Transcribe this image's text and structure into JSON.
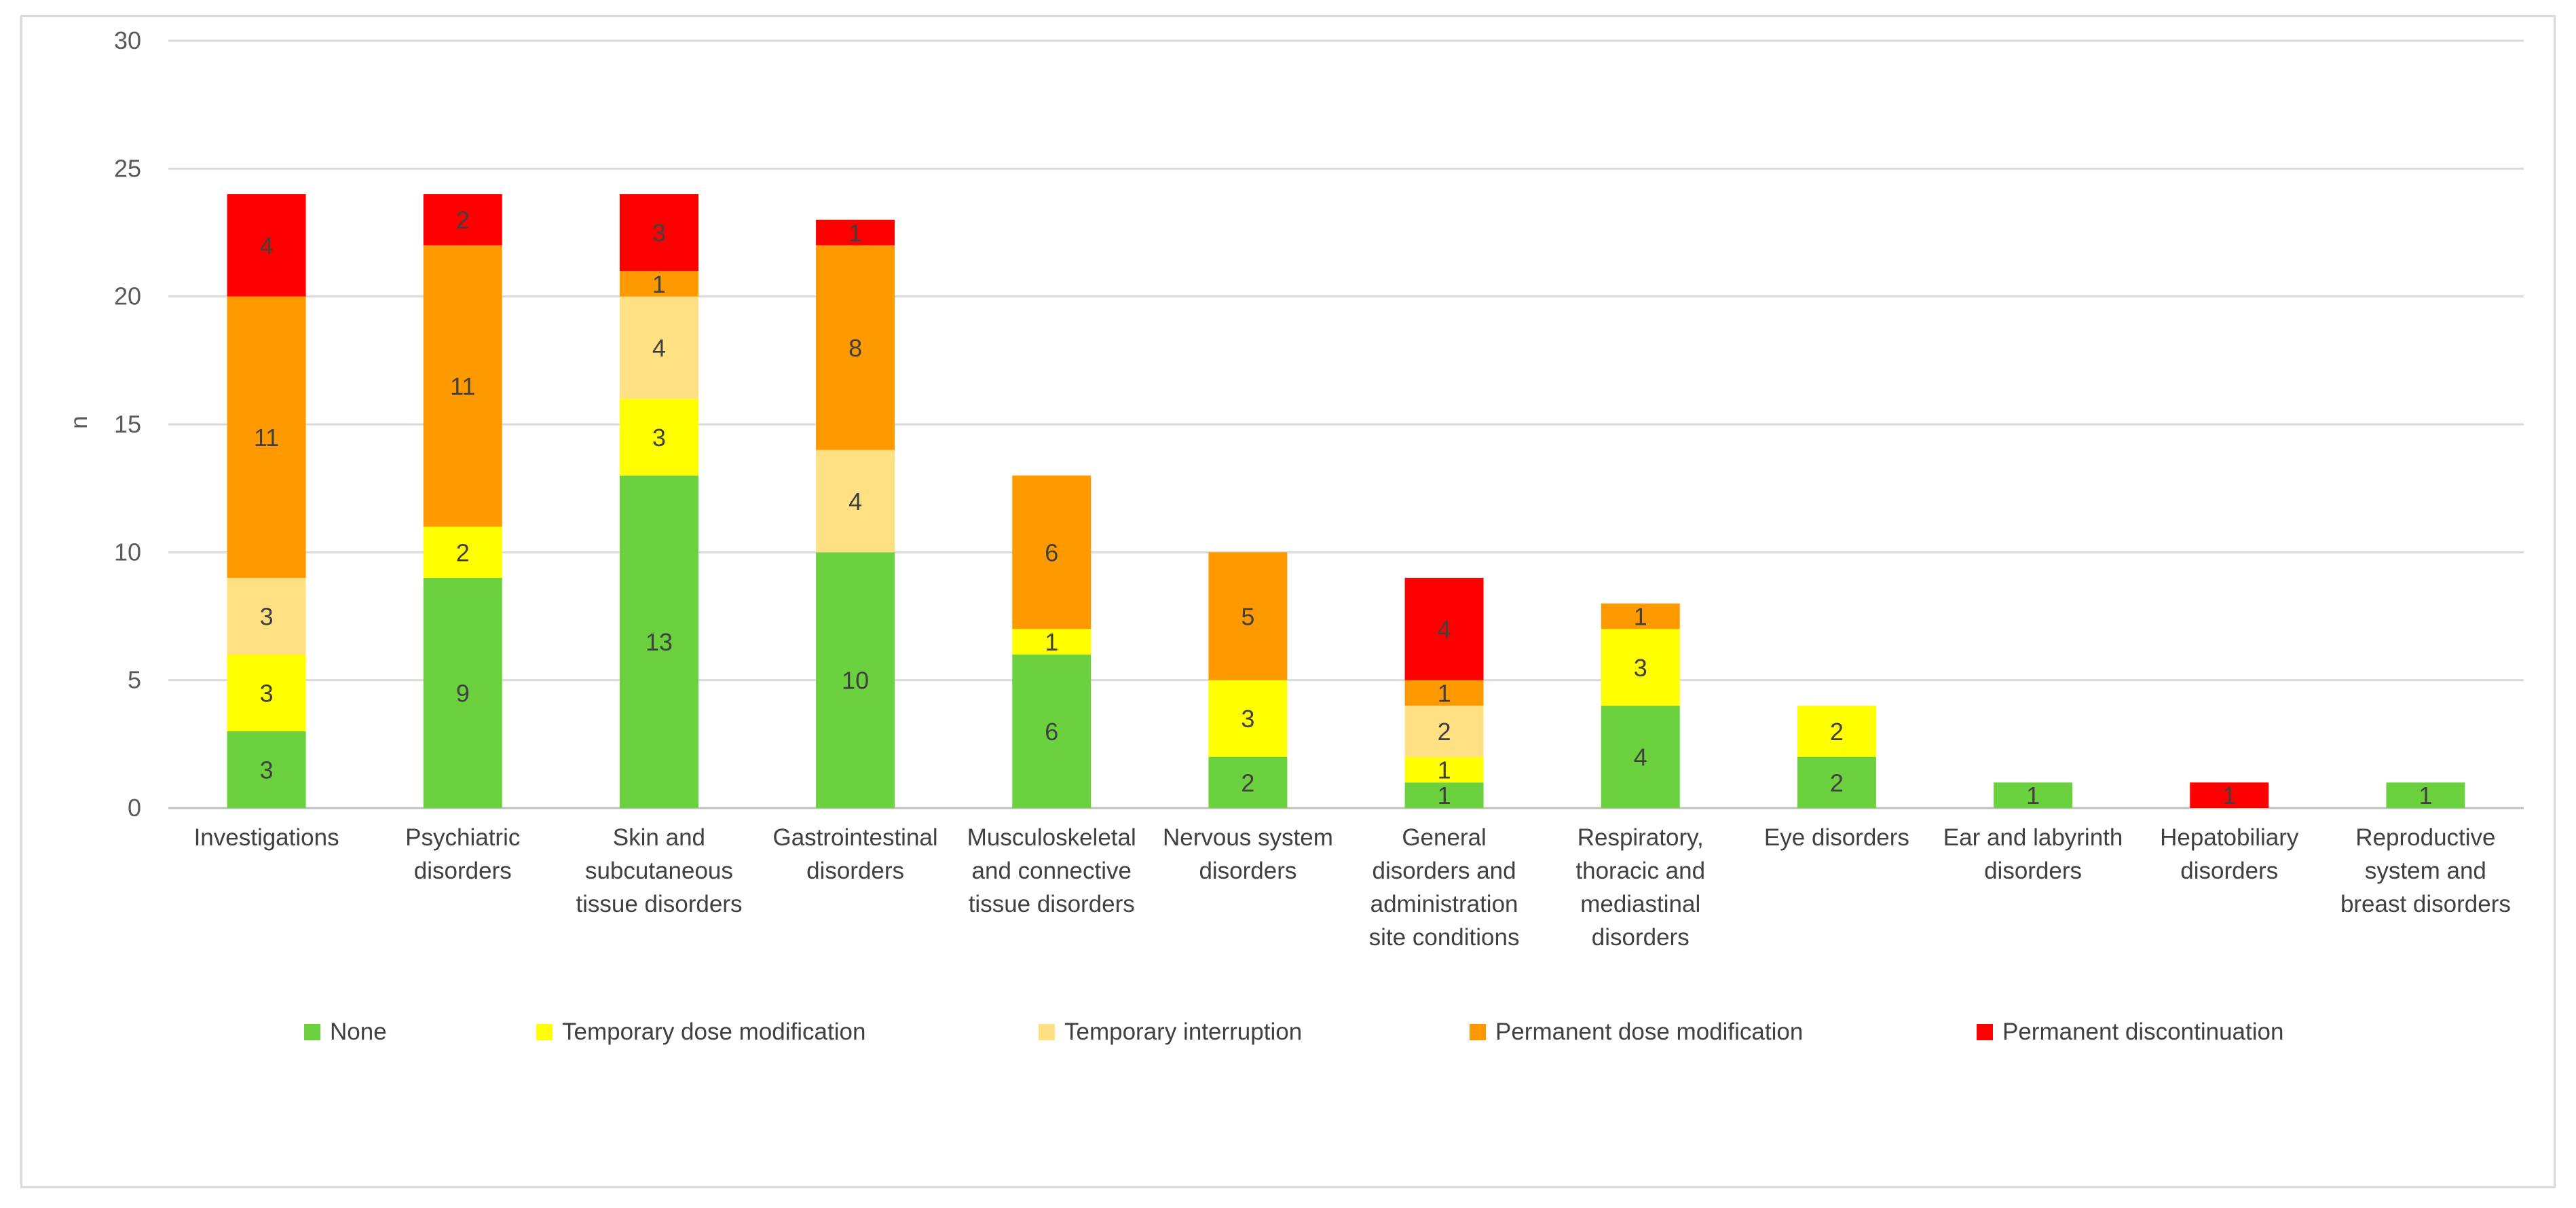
{
  "chart_data": {
    "type": "bar",
    "stacked": true,
    "title": "",
    "xlabel": "",
    "ylabel": "n",
    "ylim": [
      0,
      30
    ],
    "yticks": [
      0,
      5,
      10,
      15,
      20,
      25,
      30
    ],
    "grid": true,
    "legend_position": "bottom",
    "categories": [
      [
        "Investigations"
      ],
      [
        "Psychiatric",
        "disorders"
      ],
      [
        "Skin and",
        "subcutaneous",
        "tissue disorders"
      ],
      [
        "Gastrointestinal",
        "disorders"
      ],
      [
        "Musculoskeletal",
        "and connective",
        "tissue disorders"
      ],
      [
        "Nervous system",
        "disorders"
      ],
      [
        "General",
        "disorders and",
        "administration",
        "site conditions"
      ],
      [
        "Respiratory,",
        "thoracic and",
        "mediastinal",
        "disorders"
      ],
      [
        "Eye disorders"
      ],
      [
        "Ear and labyrinth",
        "disorders"
      ],
      [
        "Hepatobiliary",
        "disorders"
      ],
      [
        "Reproductive",
        "system and",
        "breast disorders"
      ]
    ],
    "series": [
      {
        "name": "None",
        "color": "#6bd13f",
        "values": [
          3,
          9,
          13,
          10,
          6,
          2,
          1,
          4,
          2,
          1,
          0,
          1
        ]
      },
      {
        "name": "Temporary dose modification",
        "color": "#ffff00",
        "values": [
          3,
          2,
          3,
          0,
          1,
          3,
          1,
          3,
          2,
          0,
          0,
          0
        ]
      },
      {
        "name": "Temporary interruption",
        "color": "#ffe082",
        "values": [
          3,
          0,
          4,
          4,
          0,
          0,
          2,
          0,
          0,
          0,
          0,
          0
        ]
      },
      {
        "name": "Permanent dose modification",
        "color": "#ff9900",
        "values": [
          11,
          11,
          1,
          8,
          6,
          5,
          1,
          1,
          0,
          0,
          0,
          0
        ]
      },
      {
        "name": "Permanent discontinuation",
        "color": "#ff0000",
        "values": [
          4,
          2,
          3,
          1,
          0,
          0,
          4,
          0,
          0,
          0,
          1,
          0
        ]
      }
    ]
  }
}
